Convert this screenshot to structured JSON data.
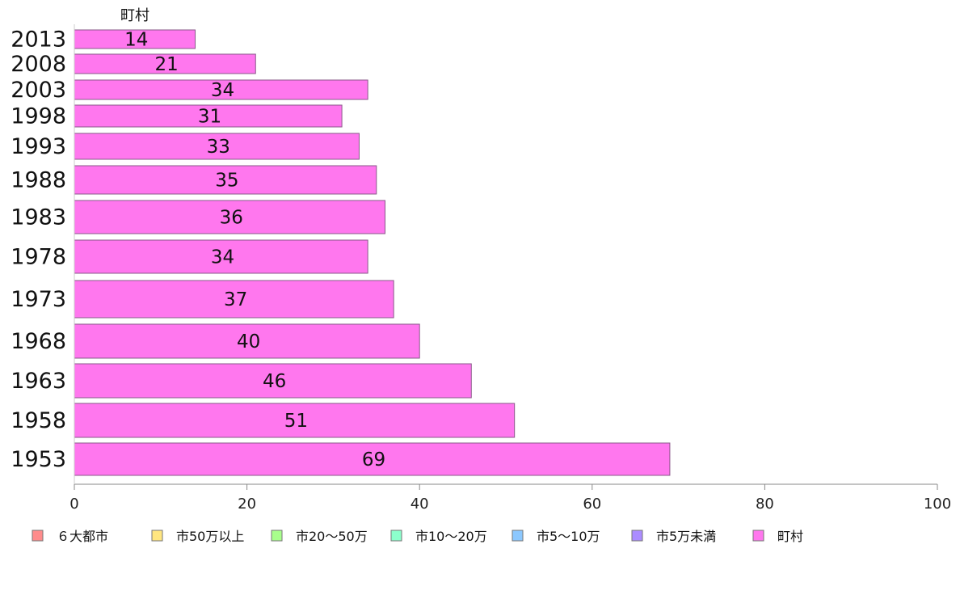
{
  "chart_data": {
    "type": "bar",
    "orientation": "horizontal",
    "categories": [
      "2013",
      "2008",
      "2003",
      "1998",
      "1993",
      "1988",
      "1983",
      "1978",
      "1973",
      "1968",
      "1963",
      "1958",
      "1953"
    ],
    "series": [
      {
        "name": "町村",
        "color": "#ff77ee",
        "values": [
          14,
          21,
          34,
          31,
          33,
          35,
          36,
          34,
          37,
          40,
          46,
          51,
          69
        ]
      }
    ],
    "data_labels": [
      "14",
      "21",
      "34",
      "31",
      "33",
      "35",
      "36",
      "34",
      "37",
      "40",
      "46",
      "51",
      "69"
    ],
    "series_header": "町村",
    "xlim": [
      0,
      100
    ],
    "x_ticks": [
      "0",
      "20",
      "40",
      "60",
      "80",
      "100"
    ],
    "grid": false,
    "legend_position": "bottom",
    "legend": [
      {
        "label": "６大都市",
        "color": "#ff8c8c"
      },
      {
        "label": "市50万以上",
        "color": "#ffe680"
      },
      {
        "label": "市20～50万",
        "color": "#a8ff8c"
      },
      {
        "label": "市10～20万",
        "color": "#8cffcc"
      },
      {
        "label": "市5～10万",
        "color": "#8cc8ff"
      },
      {
        "label": "市5万未満",
        "color": "#ab8cff"
      },
      {
        "label": "町村",
        "color": "#ff77ee"
      }
    ]
  }
}
